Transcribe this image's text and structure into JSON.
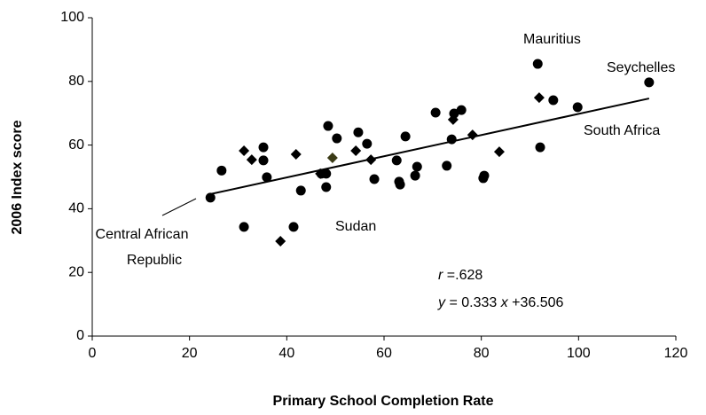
{
  "chart_data": {
    "type": "scatter",
    "x_label": "Primary School Completion Rate",
    "y_label": "2006 Index score",
    "xlim": [
      0,
      120
    ],
    "xticks": [
      0,
      20,
      40,
      60,
      80,
      100,
      120
    ],
    "ylim": [
      0,
      100
    ],
    "yticks": [
      0,
      20,
      40,
      60,
      80,
      100
    ],
    "grid": false,
    "series": [
      {
        "marker": "circle",
        "color": "#000000",
        "x": [
          24.3,
          26.6,
          31.2,
          35.2,
          35.2,
          35.9,
          42.9,
          41.4,
          47.1,
          48.1,
          48.5,
          48.1,
          50.3,
          54.7,
          56.5,
          58.0,
          62.6,
          63.1,
          63.3,
          64.4,
          66.4,
          66.8,
          70.6,
          72.9,
          73.9,
          74.4,
          75.9,
          80.4,
          80.6,
          91.6,
          92.1,
          94.8,
          99.8,
          114.5
        ],
        "values": [
          43.5,
          52.0,
          34.3,
          59.3,
          55.2,
          49.9,
          45.7,
          34.3,
          51.0,
          51.0,
          66.0,
          46.8,
          62.1,
          64.0,
          60.4,
          49.3,
          55.2,
          48.5,
          47.6,
          62.7,
          50.4,
          53.2,
          70.2,
          53.5,
          61.8,
          69.9,
          71.0,
          49.6,
          50.4,
          85.5,
          59.3,
          74.1,
          71.9,
          79.7
        ]
      },
      {
        "marker": "diamond",
        "color": "#000000",
        "x": [
          31.2,
          32.8,
          38.7,
          41.9,
          46.9,
          54.2,
          57.3,
          74.2,
          78.2,
          83.7,
          91.9
        ],
        "values": [
          58.2,
          55.4,
          29.8,
          57.1,
          51.0,
          58.2,
          55.4,
          68.0,
          63.2,
          57.9,
          74.9
        ]
      },
      {
        "marker": "diamond",
        "color": "#3b3b16",
        "x": [
          49.4
        ],
        "values": [
          56.0
        ]
      }
    ],
    "trendline": {
      "slope": 0.333,
      "intercept": 36.506
    },
    "annotations": [
      "Mauritius",
      "Seychelles",
      "South Africa",
      "Sudan",
      "Central African",
      "Republic"
    ],
    "r_label": [
      "r",
      " =.628"
    ],
    "equation_label": [
      "y",
      " = 0.333 ",
      "x",
      " +36.506"
    ]
  }
}
